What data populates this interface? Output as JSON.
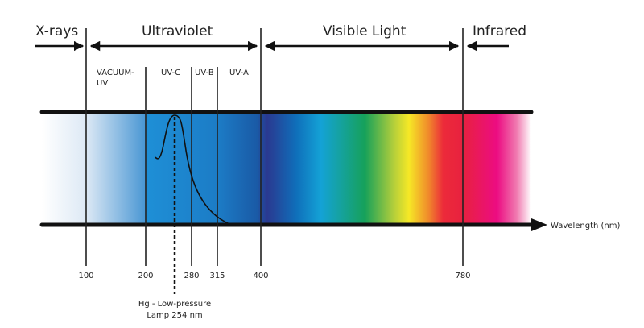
{
  "regions": {
    "xrays": "X-rays",
    "ultraviolet": "Ultraviolet",
    "visible": "Visible Light",
    "infrared": "Infrared"
  },
  "uv_bands": {
    "vacuum_line1": "VACUUM-",
    "vacuum_line2": "UV",
    "uvc": "UV-C",
    "uvb": "UV-B",
    "uva": "UV-A"
  },
  "axis": {
    "label": "Wavelength (nm)",
    "ticks": [
      "100",
      "200",
      "280",
      "315",
      "400",
      "780"
    ]
  },
  "annotation": {
    "line1": "Hg - Low-pressure",
    "line2": "Lamp 254 nm"
  },
  "colors": {
    "uv": "#1b8ed6",
    "violet": "#2a3b90",
    "green": "#16a15a",
    "yellow": "#f6e826",
    "red": "#e8213f",
    "magenta": "#ec0c82"
  }
}
